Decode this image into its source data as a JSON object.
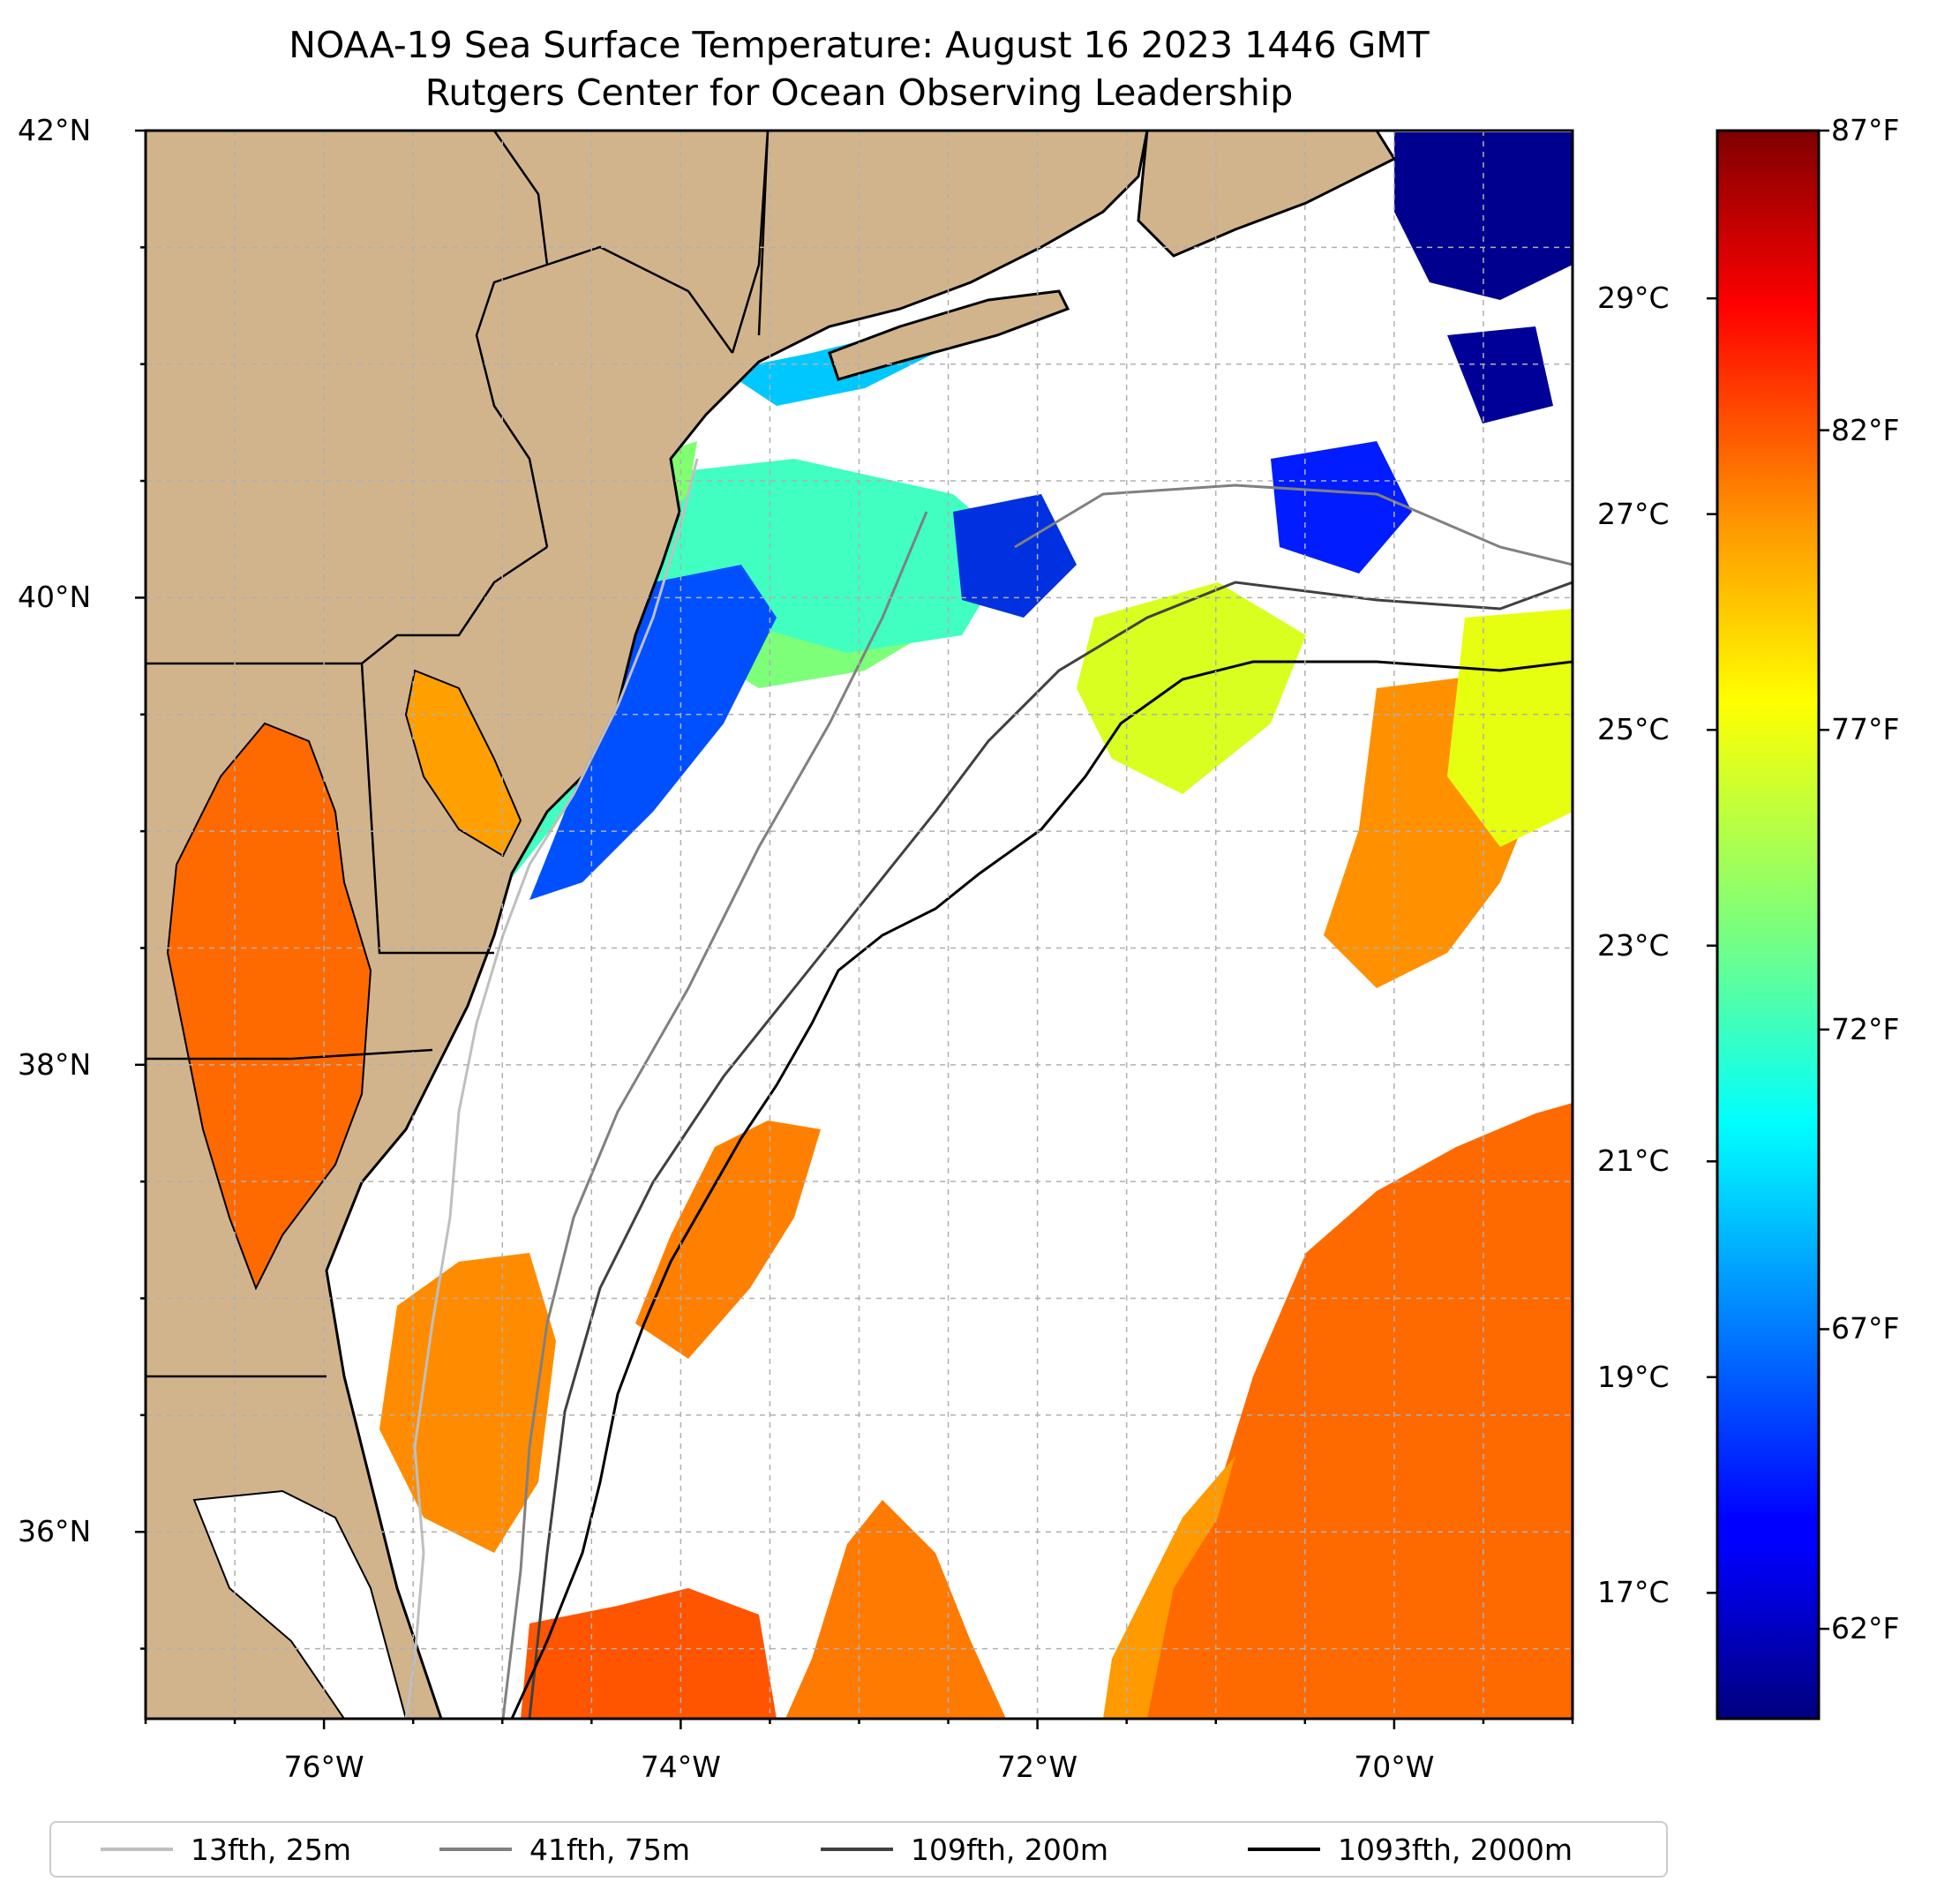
{
  "title": {
    "line1": "NOAA-19 Sea Surface Temperature: August 16 2023 1446 GMT",
    "line2": "Rutgers Center for Ocean Observing Leadership"
  },
  "map": {
    "lon_range": [
      -77,
      -69
    ],
    "lat_range": [
      35.2,
      42
    ],
    "lat_ticks": [
      {
        "value": 42,
        "label": "42°N"
      },
      {
        "value": 40,
        "label": "40°N"
      },
      {
        "value": 38,
        "label": "38°N"
      },
      {
        "value": 36,
        "label": "36°N"
      }
    ],
    "lon_ticks": [
      {
        "value": -76,
        "label": "76°W"
      },
      {
        "value": -74,
        "label": "74°W"
      },
      {
        "value": -72,
        "label": "72°W"
      },
      {
        "value": -70,
        "label": "70°W"
      }
    ],
    "land_color": "#d2b48c",
    "gridlines": true
  },
  "colorbar": {
    "colormap": "jet",
    "range_f": [
      60.5,
      87
    ],
    "celsius_ticks": [
      {
        "value": 29,
        "label": "29°C"
      },
      {
        "value": 27,
        "label": "27°C"
      },
      {
        "value": 25,
        "label": "25°C"
      },
      {
        "value": 23,
        "label": "23°C"
      },
      {
        "value": 21,
        "label": "21°C"
      },
      {
        "value": 19,
        "label": "19°C"
      },
      {
        "value": 17,
        "label": "17°C"
      }
    ],
    "fahrenheit_ticks": [
      {
        "value": 87,
        "label": "87°F"
      },
      {
        "value": 82,
        "label": "82°F"
      },
      {
        "value": 77,
        "label": "77°F"
      },
      {
        "value": 72,
        "label": "72°F"
      },
      {
        "value": 67,
        "label": "67°F"
      },
      {
        "value": 62,
        "label": "62°F"
      }
    ]
  },
  "legend": {
    "items": [
      {
        "label": "13fth, 25m",
        "color": "#bfbfbf"
      },
      {
        "label": "41fth, 75m",
        "color": "#808080"
      },
      {
        "label": "109fth, 200m",
        "color": "#404040"
      },
      {
        "label": "1093fth, 2000m",
        "color": "#000000"
      }
    ]
  }
}
